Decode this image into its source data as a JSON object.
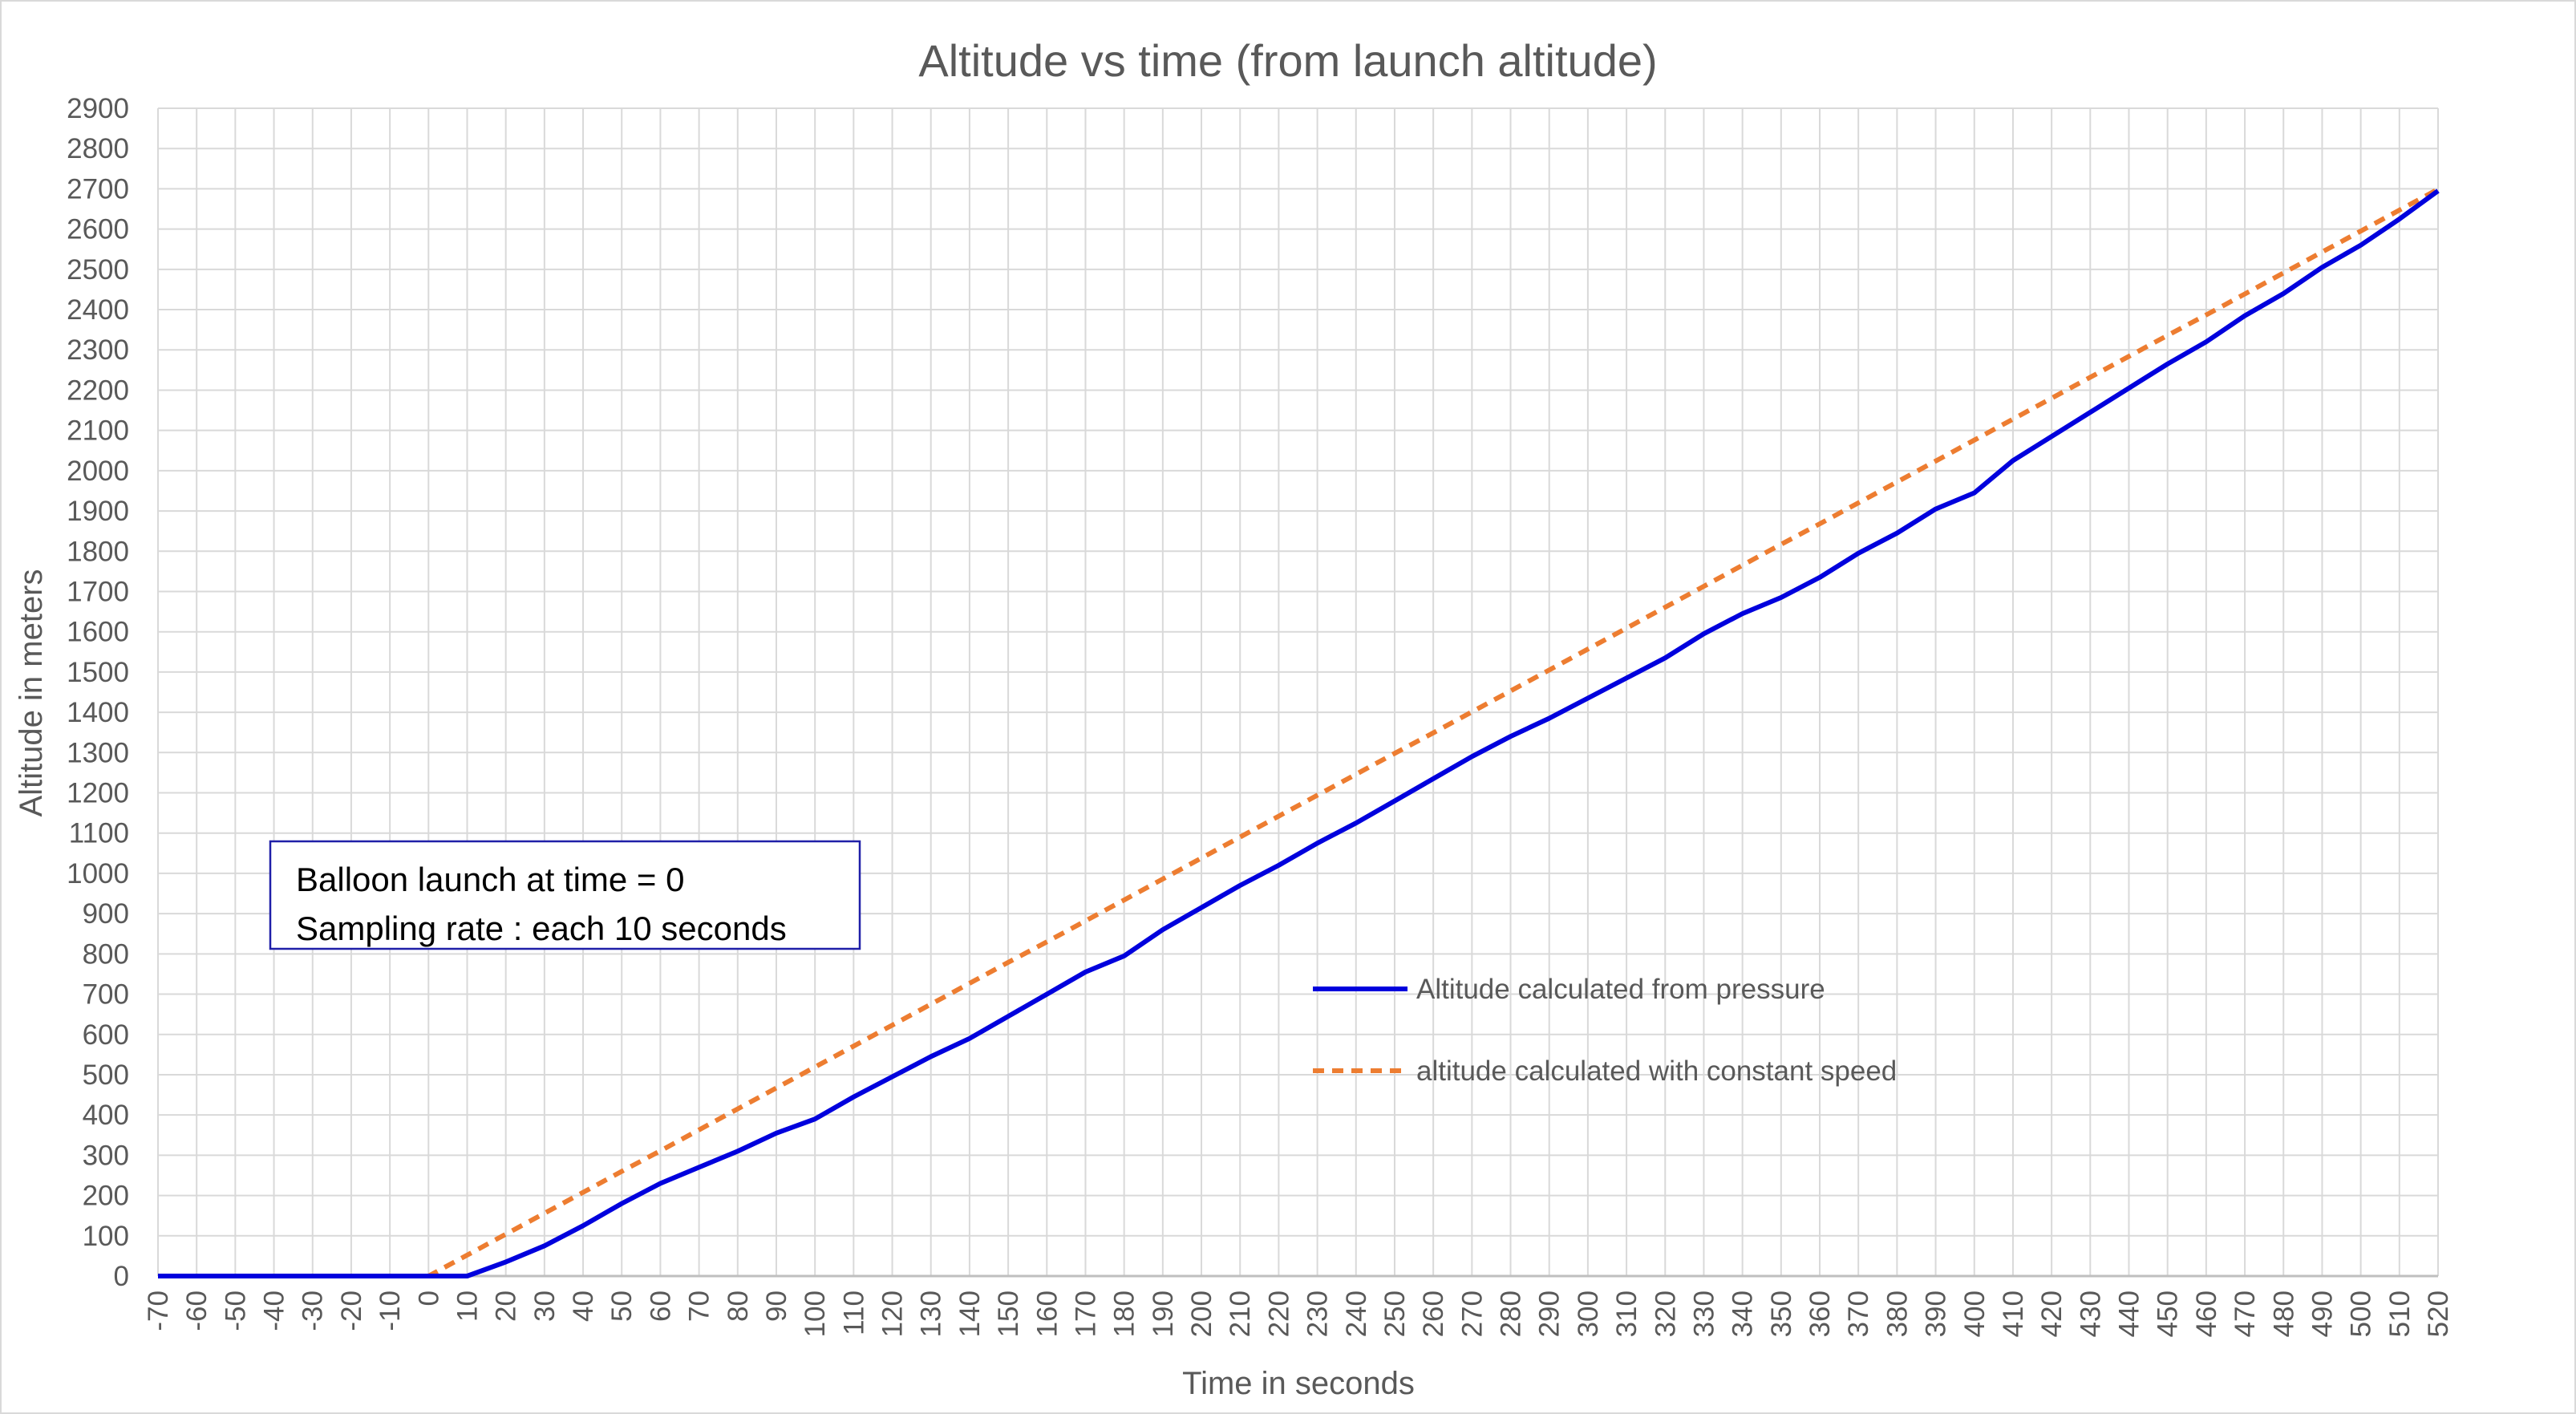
{
  "chart_data": {
    "type": "line",
    "title": "Altitude vs time (from launch altitude)",
    "xlabel": "Time in seconds",
    "ylabel": "Altitude in meters",
    "xlim": [
      -70,
      520
    ],
    "ylim": [
      0,
      2900
    ],
    "x_tick_step": 10,
    "y_tick_step": 100,
    "grid": true,
    "legend_position": "right-center",
    "x": [
      -70,
      -60,
      -50,
      -40,
      -30,
      -20,
      -10,
      0,
      10,
      20,
      30,
      40,
      50,
      60,
      70,
      80,
      90,
      100,
      110,
      120,
      130,
      140,
      150,
      160,
      170,
      180,
      190,
      200,
      210,
      220,
      230,
      240,
      250,
      260,
      270,
      280,
      290,
      300,
      310,
      320,
      330,
      340,
      350,
      360,
      370,
      380,
      390,
      400,
      410,
      420,
      430,
      440,
      450,
      460,
      470,
      480,
      490,
      500,
      510,
      520
    ],
    "series": [
      {
        "name": "Altitude calculated from pressure",
        "color": "#0000dd",
        "style": "solid",
        "values": [
          0,
          0,
          0,
          0,
          0,
          0,
          0,
          0,
          0,
          35,
          75,
          125,
          180,
          230,
          270,
          310,
          355,
          390,
          445,
          495,
          545,
          590,
          645,
          700,
          755,
          795,
          860,
          915,
          970,
          1020,
          1075,
          1125,
          1180,
          1235,
          1290,
          1340,
          1385,
          1435,
          1485,
          1535,
          1595,
          1645,
          1685,
          1735,
          1795,
          1845,
          1905,
          1945,
          2025,
          2085,
          2145,
          2205,
          2265,
          2320,
          2385,
          2440,
          2505,
          2560,
          2625,
          2695
        ]
      },
      {
        "name": "altitude calculated with constant speed",
        "color": "#ed7d31",
        "style": "dashed",
        "values": [
          0,
          0,
          0,
          0,
          0,
          0,
          0,
          0,
          52,
          104,
          156,
          208,
          260,
          311,
          363,
          415,
          467,
          519,
          571,
          623,
          675,
          727,
          779,
          830,
          882,
          934,
          986,
          1038,
          1090,
          1142,
          1194,
          1246,
          1298,
          1349,
          1401,
          1453,
          1505,
          1557,
          1609,
          1661,
          1713,
          1765,
          1817,
          1868,
          1920,
          1972,
          2024,
          2076,
          2128,
          2180,
          2232,
          2284,
          2336,
          2387,
          2439,
          2491,
          2543,
          2595,
          2647,
          2699
        ]
      }
    ],
    "annotations": [
      "Balloon launch at time = 0",
      "Sampling rate : each 10 seconds"
    ]
  }
}
